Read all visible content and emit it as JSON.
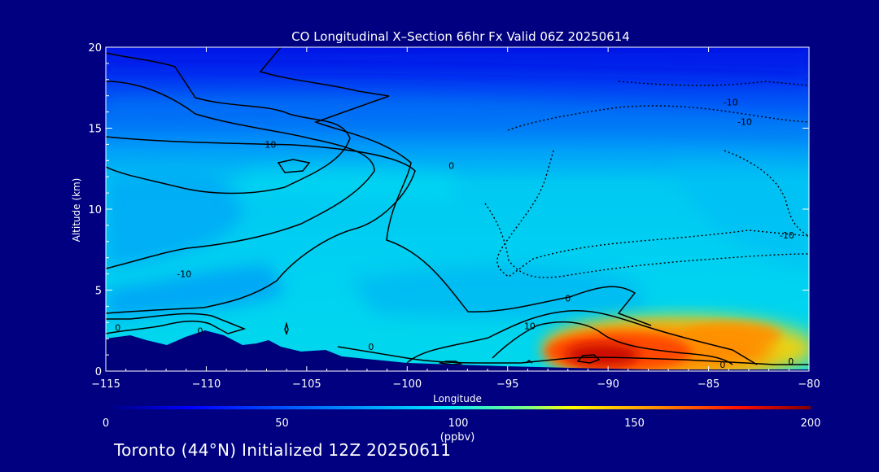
{
  "chart_data": {
    "type": "heatmap",
    "title": "CO Longitudinal X–Section 66hr  Fx Valid 06Z 20250614",
    "xlabel": "Longitude",
    "ylabel": "Altitude (km)",
    "xlim": [
      -115,
      -80
    ],
    "ylim": [
      0,
      20
    ],
    "xticks": [
      -115,
      -110,
      -105,
      -100,
      -95,
      -90,
      -85,
      -80
    ],
    "xtick_labels": [
      "−115",
      "−110",
      "−105",
      "−100",
      "−95",
      "−90",
      "−85",
      "−80"
    ],
    "yticks": [
      0,
      5,
      10,
      15,
      20
    ],
    "ytick_labels": [
      "0",
      "5",
      "10",
      "15",
      "20"
    ],
    "colorbar": {
      "label": "(ppbv)",
      "min": 0,
      "max": 200,
      "ticks": [
        0,
        50,
        100,
        150,
        200
      ],
      "tick_labels": [
        "0",
        "50",
        "100",
        "150",
        "200"
      ]
    },
    "contour_labels": [
      {
        "text": "10",
        "lon": -106.8,
        "alt": 14.0
      },
      {
        "text": "0",
        "lon": -97.8,
        "alt": 12.7
      },
      {
        "text": "-10",
        "lon": -111.1,
        "alt": 6.0
      },
      {
        "text": "0",
        "lon": -114.4,
        "alt": 2.7
      },
      {
        "text": "0",
        "lon": -110.3,
        "alt": 2.5
      },
      {
        "text": "0",
        "lon": -101.8,
        "alt": 1.5
      },
      {
        "text": "0",
        "lon": -92.0,
        "alt": 4.5
      },
      {
        "text": "10",
        "lon": -93.9,
        "alt": 2.8
      },
      {
        "text": "-10",
        "lon": -83.9,
        "alt": 16.6
      },
      {
        "text": "-10",
        "lon": -83.2,
        "alt": 15.4
      },
      {
        "text": "-10",
        "lon": -81.1,
        "alt": 8.4
      },
      {
        "text": "0",
        "lon": -84.3,
        "alt": 0.4
      },
      {
        "text": "0",
        "lon": -80.9,
        "alt": 0.6
      }
    ]
  },
  "footer": {
    "text": "Toronto (44°N) Initialized 12Z 20250611"
  },
  "colors": {
    "background": "#000080",
    "terrain": "#00007a",
    "plume_core": "#cc1100",
    "contour": "#000000"
  }
}
